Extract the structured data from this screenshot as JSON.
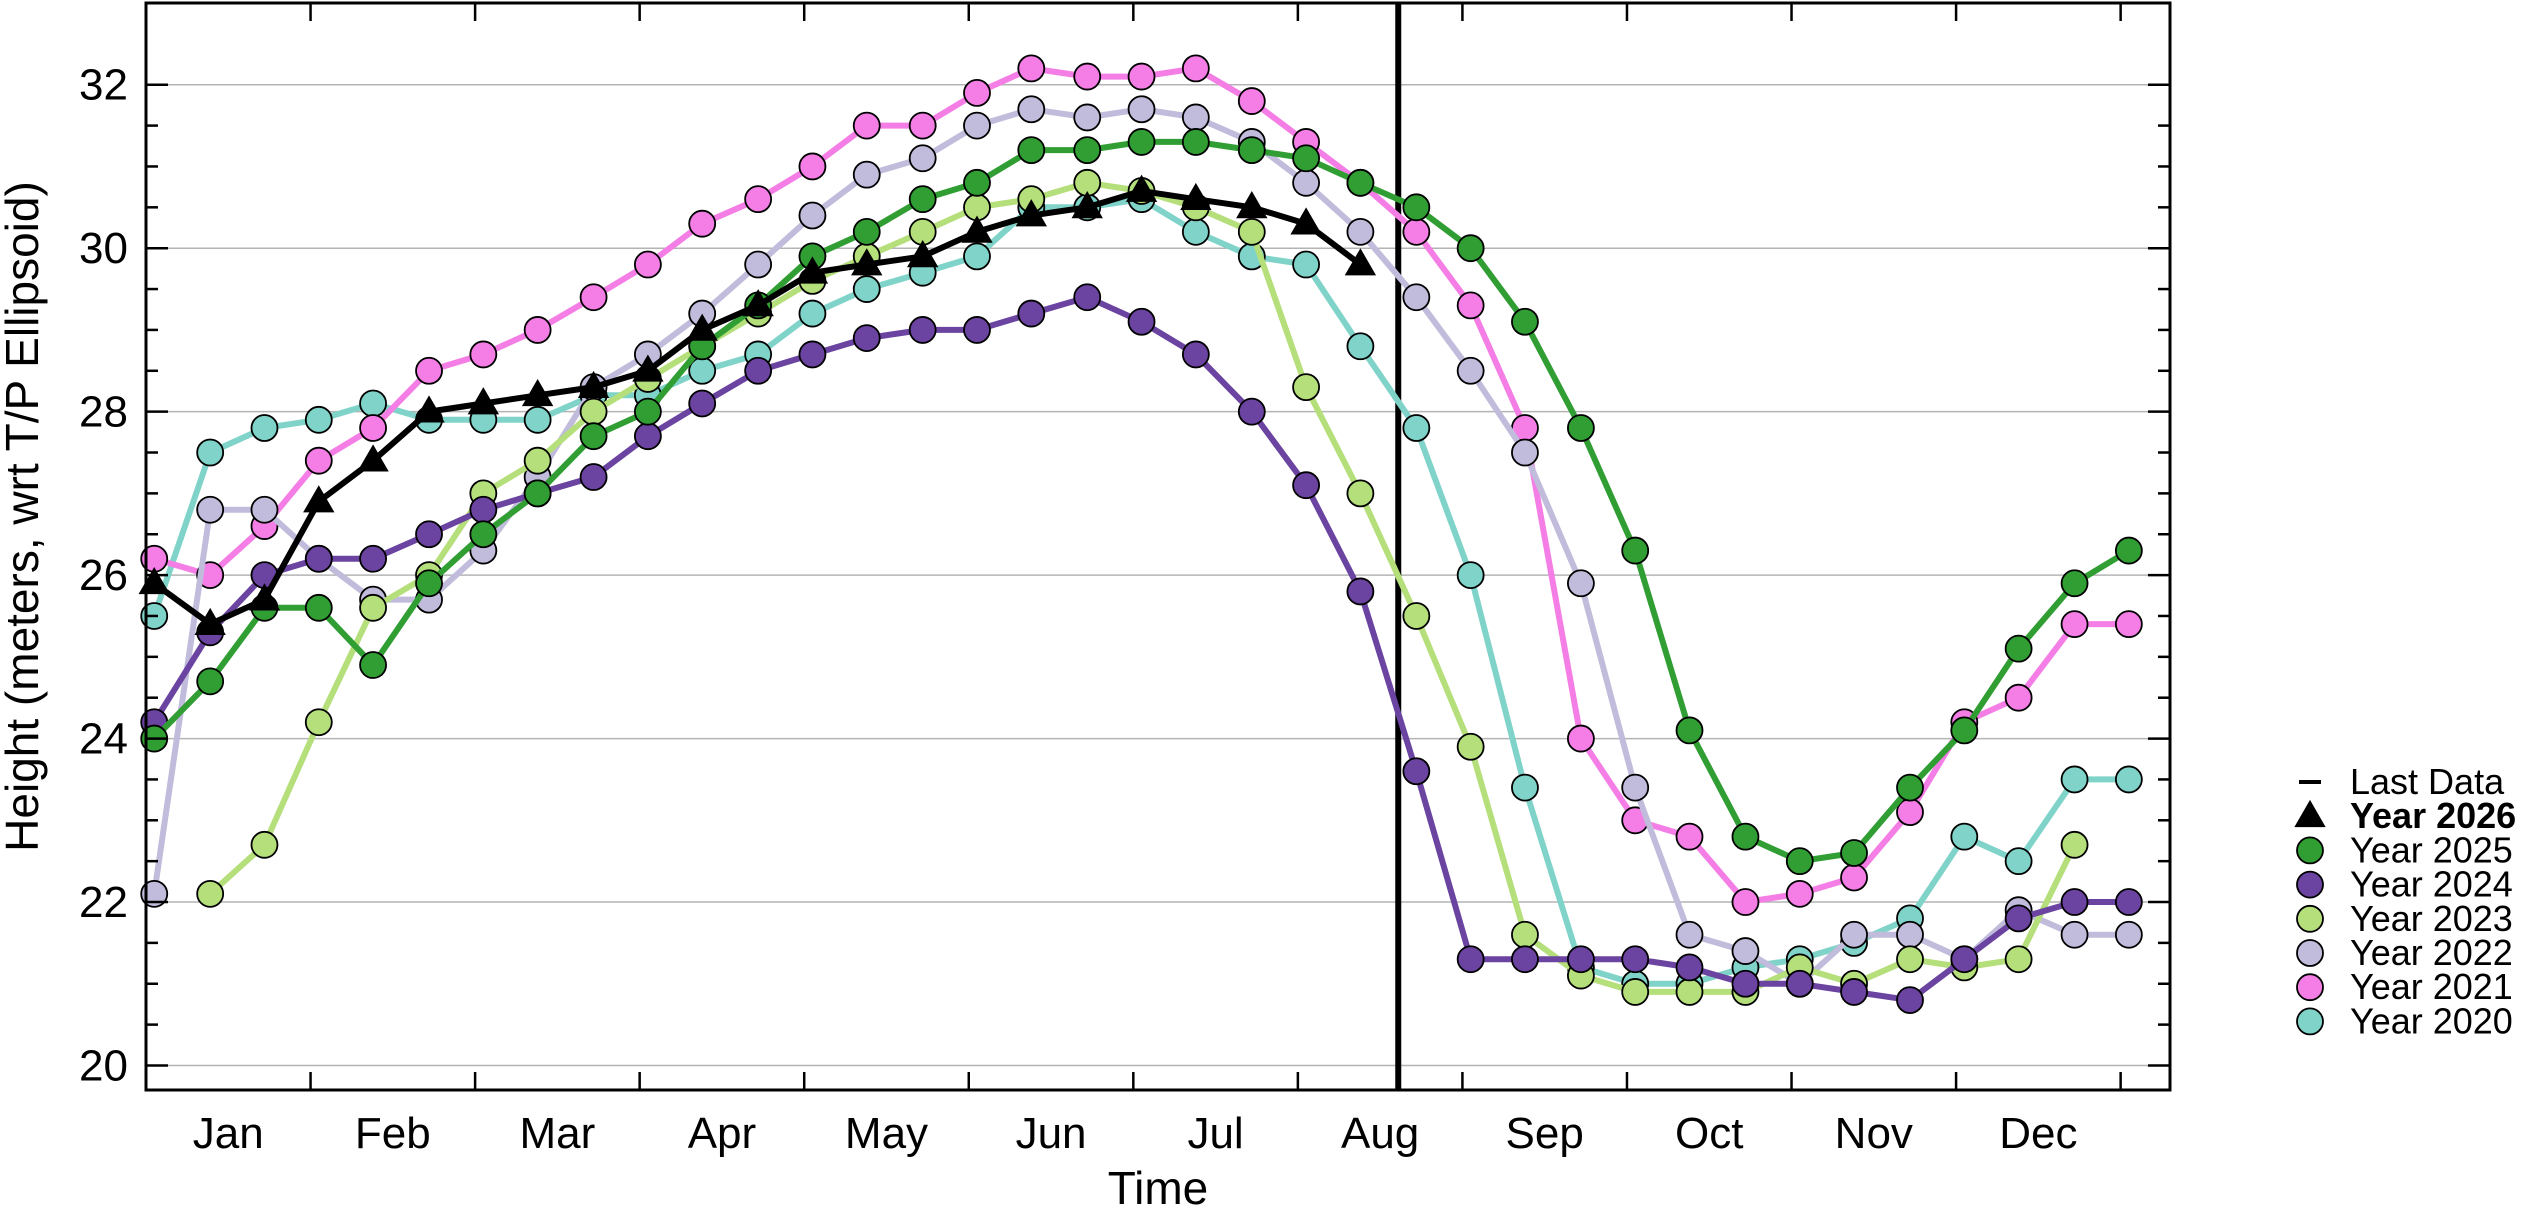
{
  "chart_data": {
    "type": "line",
    "xlabel": "Time",
    "ylabel": "Height (meters, wrt T/P Ellipsoid)",
    "ylim": [
      19.7,
      33.0
    ],
    "xlim": [
      0.0,
      12.3
    ],
    "yticks": [
      20,
      22,
      24,
      26,
      28,
      30,
      32
    ],
    "month_labels": [
      "Jan",
      "Feb",
      "Mar",
      "Apr",
      "May",
      "Jun",
      "Jul",
      "Aug",
      "Sep",
      "Oct",
      "Nov",
      "Dec"
    ],
    "grid": true,
    "last_data": 7.61,
    "legend": {
      "placement": "right",
      "last_data_label": "Last Data"
    },
    "series": [
      {
        "name": "Year 2020",
        "color": "#7fd3c8",
        "marker": "circle",
        "x": [
          0.05,
          0.39,
          0.72,
          1.05,
          1.38,
          1.72,
          2.05,
          2.38,
          2.72,
          3.05,
          3.38,
          3.72,
          4.05,
          4.38,
          4.72,
          5.05,
          5.38,
          5.72,
          6.05,
          6.38,
          6.72,
          7.05,
          7.38,
          7.72,
          8.05,
          8.38,
          8.72,
          9.05,
          9.38,
          9.72,
          10.05,
          10.38,
          10.72,
          11.05,
          11.38,
          11.72,
          12.05
        ],
        "y": [
          25.5,
          27.5,
          27.8,
          27.9,
          28.1,
          27.9,
          27.9,
          27.9,
          28.2,
          28.2,
          28.5,
          28.7,
          29.2,
          29.5,
          29.7,
          29.9,
          30.5,
          30.5,
          30.6,
          30.2,
          29.9,
          29.8,
          28.8,
          27.8,
          26.0,
          23.4,
          21.2,
          21.0,
          21.0,
          21.2,
          21.3,
          21.5,
          21.8,
          22.8,
          22.5,
          23.5,
          23.5
        ]
      },
      {
        "name": "Year 2021",
        "color": "#f47ee6",
        "marker": "circle",
        "x": [
          0.05,
          0.39,
          0.72,
          1.05,
          1.38,
          1.72,
          2.05,
          2.38,
          2.72,
          3.05,
          3.38,
          3.72,
          4.05,
          4.38,
          4.72,
          5.05,
          5.38,
          5.72,
          6.05,
          6.38,
          6.72,
          7.05,
          7.38,
          7.72,
          8.05,
          8.38,
          8.72,
          9.05,
          9.38,
          9.72,
          10.05,
          10.38,
          10.72,
          11.05,
          11.38,
          11.72,
          12.05
        ],
        "y": [
          26.2,
          26.0,
          26.6,
          27.4,
          27.8,
          28.5,
          28.7,
          29.0,
          29.4,
          29.8,
          30.3,
          30.6,
          31.0,
          31.5,
          31.5,
          31.9,
          32.2,
          32.1,
          32.1,
          32.2,
          31.8,
          31.3,
          30.8,
          30.2,
          29.3,
          27.8,
          24.0,
          23.0,
          22.8,
          22.0,
          22.1,
          22.3,
          23.1,
          24.2,
          24.5,
          25.4,
          25.4
        ]
      },
      {
        "name": "Year 2022",
        "color": "#c1bcdb",
        "marker": "circle",
        "x": [
          0.05,
          0.39,
          0.72,
          1.05,
          1.38,
          1.72,
          2.05,
          2.38,
          2.72,
          3.05,
          3.38,
          3.72,
          4.05,
          4.38,
          4.72,
          5.05,
          5.38,
          5.72,
          6.05,
          6.38,
          6.72,
          7.05,
          7.38,
          7.72,
          8.05,
          8.38,
          8.72,
          9.05,
          9.38,
          9.72,
          10.05,
          10.38,
          10.72,
          11.05,
          11.38,
          11.72,
          12.05
        ],
        "y": [
          22.1,
          26.8,
          26.8,
          26.2,
          25.7,
          25.7,
          26.3,
          27.2,
          28.3,
          28.7,
          29.2,
          29.8,
          30.4,
          30.9,
          31.1,
          31.5,
          31.7,
          31.6,
          31.7,
          31.6,
          31.3,
          30.8,
          30.2,
          29.4,
          28.5,
          27.5,
          25.9,
          23.4,
          21.6,
          21.4,
          21.0,
          21.6,
          21.6,
          21.3,
          21.9,
          21.6,
          21.6
        ]
      },
      {
        "name": "Year 2023",
        "color": "#b5df7a",
        "marker": "circle",
        "x": [
          0.39,
          0.72,
          1.05,
          1.38,
          1.72,
          2.05,
          2.38,
          2.72,
          3.05,
          3.38,
          3.72,
          4.05,
          4.38,
          4.72,
          5.05,
          5.38,
          5.72,
          6.05,
          6.38,
          6.72,
          7.05,
          7.38,
          7.72,
          8.05,
          8.38,
          8.72,
          9.05,
          9.38,
          9.72,
          10.05,
          10.38,
          10.72,
          11.05,
          11.38,
          11.72
        ],
        "y": [
          22.1,
          22.7,
          24.2,
          25.6,
          26.0,
          27.0,
          27.4,
          28.0,
          28.4,
          28.8,
          29.2,
          29.6,
          29.9,
          30.2,
          30.5,
          30.6,
          30.8,
          30.7,
          30.5,
          30.2,
          28.3,
          27.0,
          25.5,
          23.9,
          21.6,
          21.1,
          20.9,
          20.9,
          20.9,
          21.2,
          21.0,
          21.3,
          21.2,
          21.3,
          22.7
        ]
      },
      {
        "name": "Year 2024",
        "color": "#6b43a0",
        "marker": "circle",
        "x": [
          0.05,
          0.39,
          0.72,
          1.05,
          1.38,
          1.72,
          2.05,
          2.38,
          2.72,
          3.05,
          3.38,
          3.72,
          4.05,
          4.38,
          4.72,
          5.05,
          5.38,
          5.72,
          6.05,
          6.38,
          6.72,
          7.05,
          7.38,
          7.72,
          8.05,
          8.38,
          8.72,
          9.05,
          9.38,
          9.72,
          10.05,
          10.38,
          10.72,
          11.05,
          11.38,
          11.72,
          12.05
        ],
        "y": [
          24.2,
          25.3,
          26.0,
          26.2,
          26.2,
          26.5,
          26.8,
          27.0,
          27.2,
          27.7,
          28.1,
          28.5,
          28.7,
          28.9,
          29.0,
          29.0,
          29.2,
          29.4,
          29.1,
          28.7,
          28.0,
          27.1,
          25.8,
          23.6,
          21.3,
          21.3,
          21.3,
          21.3,
          21.2,
          21.0,
          21.0,
          20.9,
          20.8,
          21.3,
          21.8,
          22.0,
          22.0
        ]
      },
      {
        "name": "Year 2025",
        "color": "#319e34",
        "marker": "circle",
        "x": [
          0.05,
          0.39,
          0.72,
          1.05,
          1.38,
          1.72,
          2.05,
          2.38,
          2.72,
          3.05,
          3.38,
          3.72,
          4.05,
          4.38,
          4.72,
          5.05,
          5.38,
          5.72,
          6.05,
          6.38,
          6.72,
          7.05,
          7.38,
          7.72,
          8.05,
          8.38,
          8.72,
          9.05,
          9.38,
          9.72,
          10.05,
          10.38,
          10.72,
          11.05,
          11.38,
          11.72,
          12.05
        ],
        "y": [
          24.0,
          24.7,
          25.6,
          25.6,
          24.9,
          25.9,
          26.5,
          27.0,
          27.7,
          28.0,
          28.8,
          29.3,
          29.9,
          30.2,
          30.6,
          30.8,
          31.2,
          31.2,
          31.3,
          31.3,
          31.2,
          31.1,
          30.8,
          30.5,
          30.0,
          29.1,
          27.8,
          26.3,
          24.1,
          22.8,
          22.5,
          22.6,
          23.4,
          24.1,
          25.1,
          25.9,
          26.3
        ]
      },
      {
        "name": "Year 2026",
        "color": "#000000",
        "marker": "triangle",
        "bold": true,
        "x": [
          0.05,
          0.39,
          0.72,
          1.05,
          1.38,
          1.72,
          2.05,
          2.38,
          2.72,
          3.05,
          3.38,
          3.72,
          4.05,
          4.38,
          4.72,
          5.05,
          5.38,
          5.72,
          6.05,
          6.38,
          6.72,
          7.05,
          7.38
        ],
        "y": [
          25.9,
          25.4,
          25.7,
          26.9,
          27.4,
          28.0,
          28.1,
          28.2,
          28.3,
          28.5,
          29.0,
          29.3,
          29.7,
          29.8,
          29.9,
          30.2,
          30.4,
          30.5,
          30.7,
          30.6,
          30.5,
          30.3,
          29.8
        ]
      }
    ]
  }
}
